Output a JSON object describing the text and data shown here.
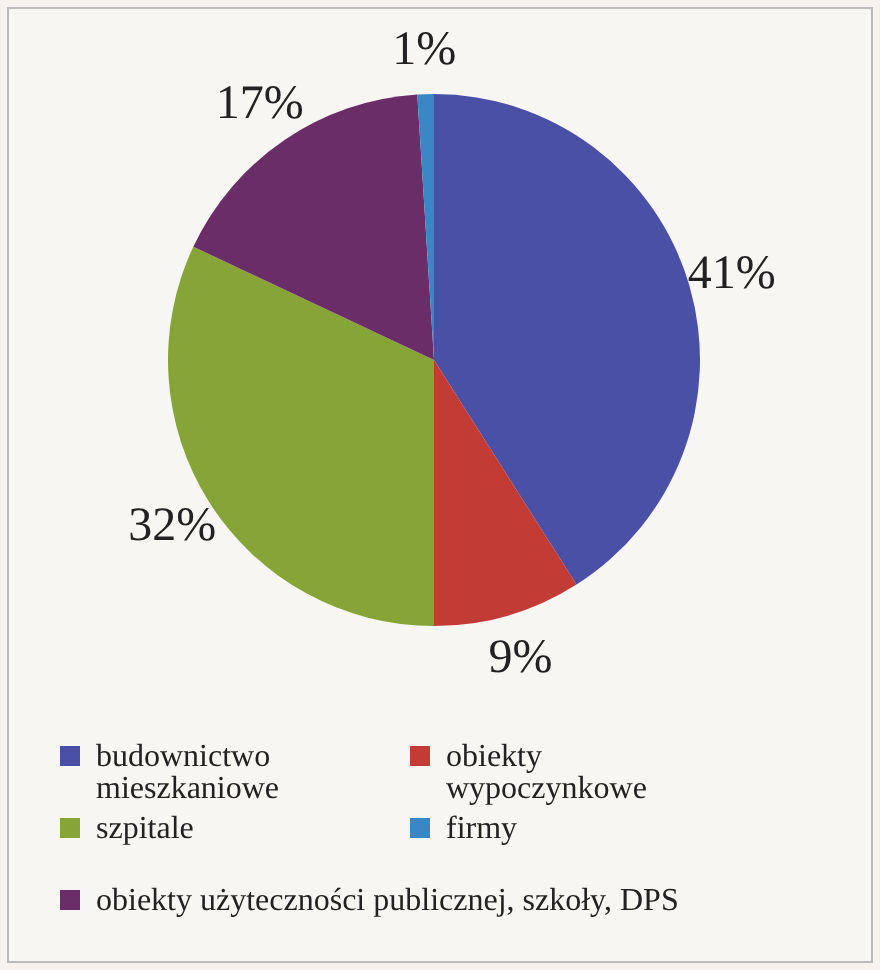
{
  "chart_data": {
    "type": "pie",
    "categories": [
      "budownictwo mieszkaniowe",
      "obiekty wypoczynkowe",
      "szpitale",
      "obiekty użyteczności publicznej, szkoły, DPS",
      "firmy"
    ],
    "values": [
      41,
      9,
      32,
      17,
      1
    ],
    "colors": [
      "#4a50a6",
      "#c23b35",
      "#86a536",
      "#6b2d68",
      "#3b86c4"
    ],
    "value_labels": [
      "41%",
      "9%",
      "32%",
      "17%",
      "1%"
    ],
    "legend": "bottom"
  }
}
